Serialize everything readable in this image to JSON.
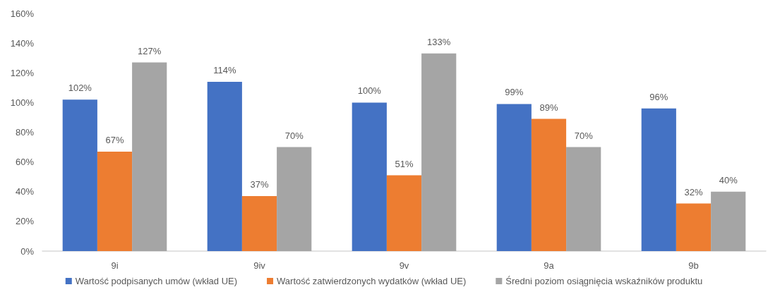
{
  "chart_data": {
    "type": "bar",
    "categories": [
      "9i",
      "9iv",
      "9v",
      "9a",
      "9b"
    ],
    "series": [
      {
        "name": "Wartość podpisanych umów (wkład UE)",
        "color": "#4472c4",
        "values": [
          102,
          114,
          100,
          99,
          96
        ],
        "value_labels": [
          "102%",
          "114%",
          "100%",
          "99%",
          "96%"
        ]
      },
      {
        "name": "Wartość zatwierdzonych wydatków (wkład UE)",
        "color": "#ed7d31",
        "values": [
          67,
          37,
          51,
          89,
          32
        ],
        "value_labels": [
          "67%",
          "37%",
          "51%",
          "89%",
          "32%"
        ]
      },
      {
        "name": "Średni poziom osiągnięcia wskaźników produktu",
        "color": "#a5a5a5",
        "values": [
          127,
          70,
          133,
          70,
          40
        ],
        "value_labels": [
          "127%",
          "70%",
          "133%",
          "70%",
          "40%"
        ]
      }
    ],
    "ylim": [
      0,
      160
    ],
    "yticks": [
      {
        "value": 0,
        "label": "0%"
      },
      {
        "value": 20,
        "label": "20%"
      },
      {
        "value": 40,
        "label": "40%"
      },
      {
        "value": 60,
        "label": "60%"
      },
      {
        "value": 80,
        "label": "80%"
      },
      {
        "value": 100,
        "label": "100%"
      },
      {
        "value": 120,
        "label": "120%"
      },
      {
        "value": 140,
        "label": "140%"
      },
      {
        "value": 160,
        "label": "160%"
      }
    ],
    "grid": false,
    "legend": "bottom"
  }
}
